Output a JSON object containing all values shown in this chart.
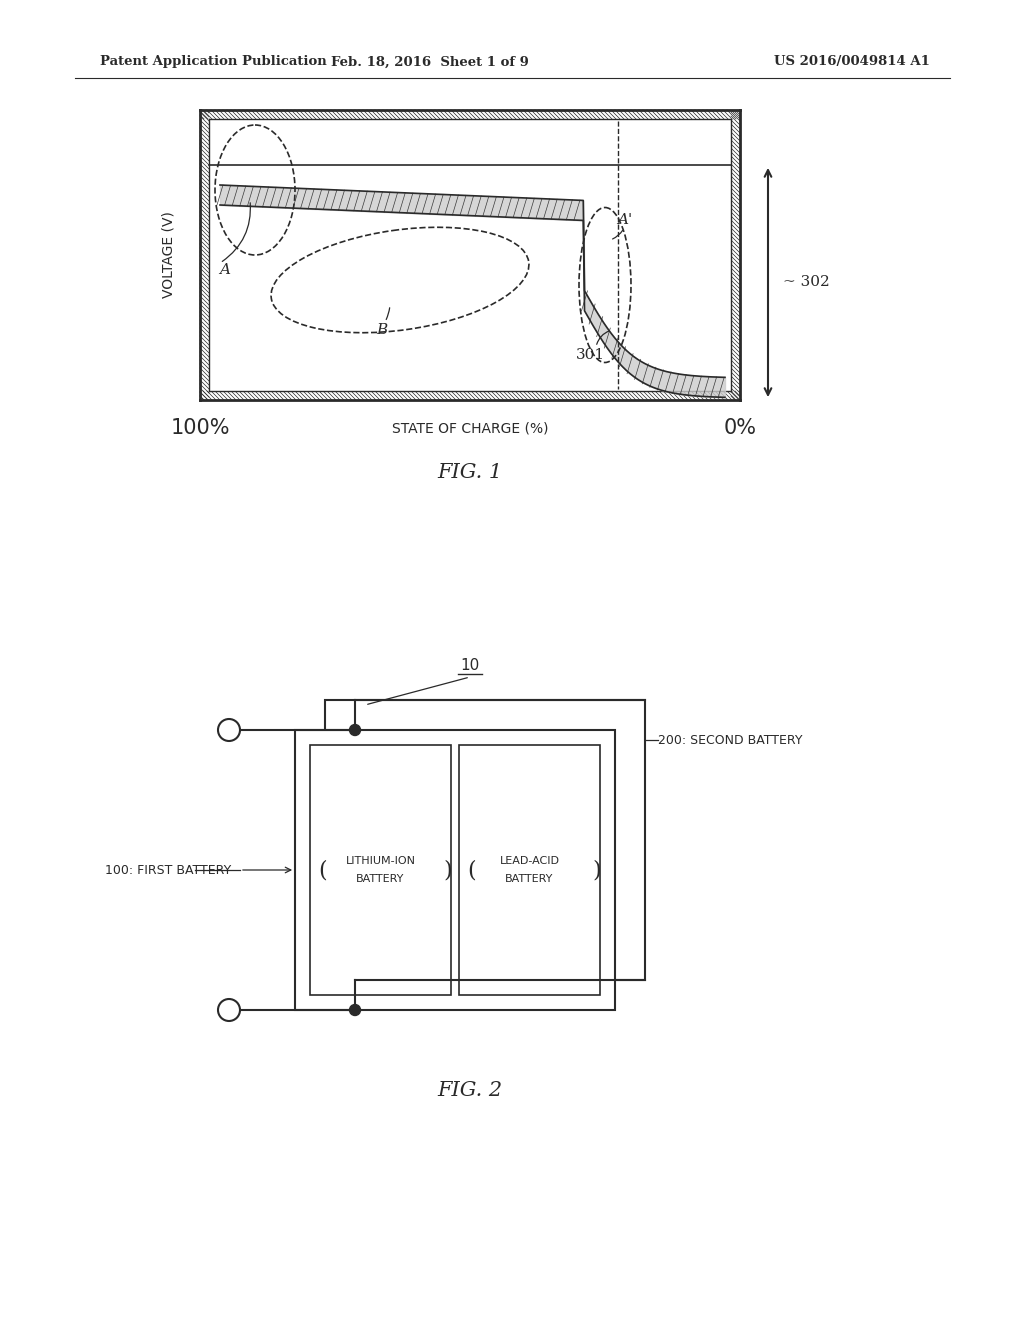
{
  "bg_color": "#ffffff",
  "line_color": "#2a2a2a",
  "text_color": "#2a2a2a",
  "header_left": "Patent Application Publication",
  "header_center": "Feb. 18, 2016  Sheet 1 of 9",
  "header_right": "US 2016/0049814 A1",
  "fig1_title": "FIG. 1",
  "fig2_title": "FIG. 2",
  "fig1_ylabel": "VOLTAGE (V)",
  "fig1_xlabel": "STATE OF CHARGE (%)",
  "fig1_x100": "100%",
  "fig1_x0": "0%",
  "label_A": "A",
  "label_Aprime": "A'",
  "label_B": "B",
  "label_301": "301",
  "label_302": "~ 302",
  "label_10": "10",
  "label_100": "100: FIRST BATTERY",
  "label_200": "200: SECOND BATTERY",
  "label_lithium_1": "LITHIUM-ION",
  "label_lithium_2": "BATTERY",
  "label_leadacid_1": "LEAD-ACID",
  "label_leadacid_2": "BATTERY"
}
